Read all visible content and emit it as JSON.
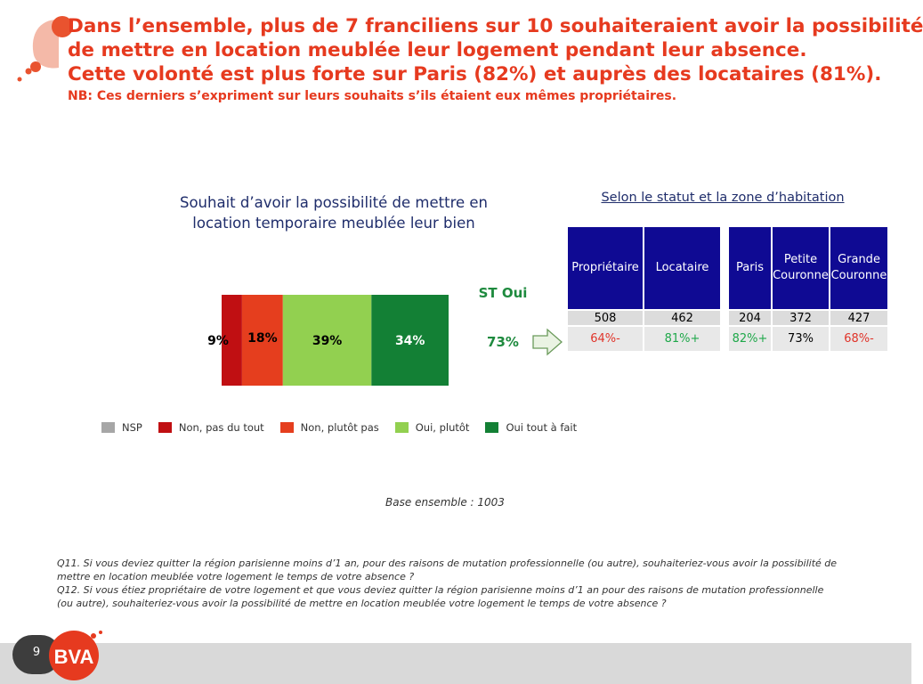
{
  "title": {
    "line1": "Dans l’ensemble, plus de 7 franciliens sur 10 souhaiteraient avoir la possibilité",
    "line2": "de mettre en location meublée leur logement pendant leur absence.",
    "line3": "Cette volonté est plus forte sur Paris (82%) et auprès des locataires (81%).",
    "nb": "NB: Ces derniers s’expriment sur leurs souhaits s’ils étaient eux mêmes propriétaires."
  },
  "chart_title_line1": "Souhait d’avoir la possibilité de mettre en",
  "chart_title_line2": "location temporaire meublée leur bien",
  "chart_data": {
    "type": "bar",
    "orientation": "horizontal-stacked",
    "series": [
      {
        "name": "NSP",
        "value": 0,
        "label": "",
        "color": "#a6a6a6"
      },
      {
        "name": "Non, pas du tout",
        "value": 9,
        "label": "9%",
        "color": "#c00f12"
      },
      {
        "name": "Non, plutôt pas",
        "value": 18,
        "label": "18%",
        "color": "#e53e1e"
      },
      {
        "name": "Oui, plutôt",
        "value": 39,
        "label": "39%",
        "color": "#92d050"
      },
      {
        "name": "Oui tout à fait",
        "value": 34,
        "label": "34%",
        "color": "#138035"
      }
    ],
    "legend_position": "bottom"
  },
  "st_oui": {
    "label": "ST Oui",
    "value": "73%"
  },
  "table_title": "Selon le statut et la zone d’habitation",
  "table_statut": {
    "headers": [
      "Propriétaire",
      "Locataire"
    ],
    "base": [
      "508",
      "462"
    ],
    "pct": [
      {
        "text": "64%-",
        "color": "red"
      },
      {
        "text": "81%+",
        "color": "green"
      }
    ]
  },
  "table_zone": {
    "headers": [
      "Paris",
      "Petite Couronne",
      "Grande Couronne"
    ],
    "base": [
      "204",
      "372",
      "427"
    ],
    "pct": [
      {
        "text": "82%+",
        "color": "green"
      },
      {
        "text": "73%",
        "color": "black"
      },
      {
        "text": "68%-",
        "color": "red"
      }
    ]
  },
  "base_note": "Base ensemble : 1003",
  "questions": {
    "q11": "Q11. Si vous deviez quitter la région parisienne moins d’1 an, pour des raisons de mutation professionnelle (ou autre), souhaiteriez-vous avoir la possibilité  de mettre en location meublée votre logement le temps de votre absence ?",
    "q12": "Q12. Si vous étiez propriétaire de votre logement et que vous deviez quitter la région parisienne moins d’1 an pour des raisons de mutation professionnelle (ou autre), souhaiteriez-vous avoir la possibilité  de mettre en location meublée votre  logement le temps de votre absence ?"
  },
  "footer": {
    "page_number": "9",
    "logo_text": "BVA"
  },
  "colors": {
    "title": "#e63a1f",
    "navy": "#1f2d6b",
    "header_bg": "#0f0a93",
    "st_oui": "#1e8a3e"
  }
}
